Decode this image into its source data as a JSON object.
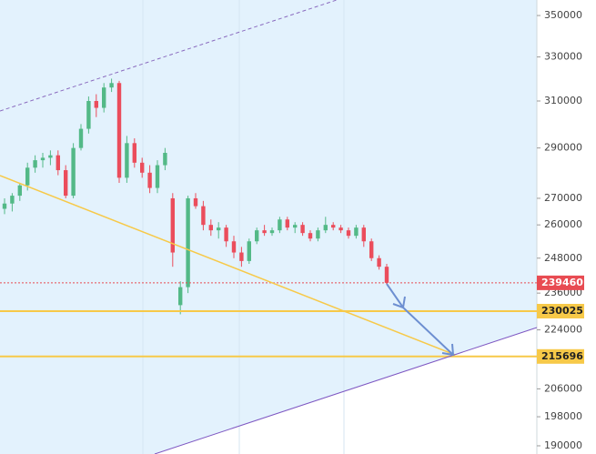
{
  "chart_data": {
    "type": "candlestick",
    "log_scale": true,
    "ylim": [
      187800,
      357800
    ],
    "yticks": [
      350000,
      330000,
      310000,
      290000,
      270000,
      260000,
      248000,
      236000,
      224000,
      206000,
      198000,
      190000
    ],
    "up_color": "#53b987",
    "down_color": "#eb4d5c",
    "candles": [
      [
        266000,
        270000,
        264000,
        268000
      ],
      [
        268000,
        272000,
        265000,
        271000
      ],
      [
        271000,
        276000,
        269000,
        275000
      ],
      [
        275000,
        284000,
        273000,
        282000
      ],
      [
        282000,
        287000,
        280000,
        285000
      ],
      [
        285000,
        288000,
        282000,
        286000
      ],
      [
        286000,
        289000,
        283000,
        287000
      ],
      [
        287000,
        289000,
        279000,
        281000
      ],
      [
        281000,
        283000,
        270000,
        271000
      ],
      [
        271000,
        292000,
        270000,
        290000
      ],
      [
        290000,
        300000,
        289000,
        298000
      ],
      [
        298000,
        312000,
        296000,
        310000
      ],
      [
        310000,
        313000,
        303000,
        307000
      ],
      [
        307000,
        318000,
        305000,
        316000
      ],
      [
        316000,
        320000,
        314000,
        318000
      ],
      [
        318000,
        319000,
        276000,
        278000
      ],
      [
        278000,
        295000,
        276000,
        292000
      ],
      [
        292000,
        294000,
        282000,
        284000
      ],
      [
        284000,
        286000,
        278000,
        280000
      ],
      [
        280000,
        283000,
        272000,
        274000
      ],
      [
        274000,
        285000,
        272000,
        283000
      ],
      [
        283000,
        290000,
        281000,
        288000
      ],
      [
        270000,
        272000,
        245000,
        250000
      ],
      [
        232000,
        240000,
        229000,
        238000
      ],
      [
        238000,
        271000,
        236000,
        270000
      ],
      [
        270000,
        272000,
        266000,
        267000
      ],
      [
        267000,
        269000,
        258000,
        260000
      ],
      [
        260000,
        262000,
        256000,
        258000
      ],
      [
        258000,
        261000,
        255000,
        259000
      ],
      [
        259000,
        260000,
        252000,
        254000
      ],
      [
        254000,
        256000,
        248000,
        250000
      ],
      [
        250000,
        252000,
        245000,
        247000
      ],
      [
        247000,
        255000,
        246000,
        254000
      ],
      [
        254000,
        259000,
        253000,
        258000
      ],
      [
        258000,
        260000,
        256000,
        257000
      ],
      [
        257000,
        259000,
        256000,
        258000
      ],
      [
        258000,
        263000,
        257000,
        262000
      ],
      [
        262000,
        263000,
        258000,
        259000
      ],
      [
        259000,
        261000,
        257000,
        260000
      ],
      [
        260000,
        261000,
        256000,
        257000
      ],
      [
        257000,
        258000,
        254000,
        255000
      ],
      [
        255000,
        259000,
        254000,
        258000
      ],
      [
        258000,
        263000,
        257000,
        260000
      ],
      [
        260000,
        261000,
        258000,
        259000
      ],
      [
        259000,
        260000,
        257000,
        258000
      ],
      [
        258000,
        259000,
        255000,
        256000
      ],
      [
        256000,
        260000,
        255000,
        259000
      ],
      [
        259000,
        260000,
        252000,
        254000
      ],
      [
        254000,
        255000,
        247000,
        248000
      ],
      [
        248000,
        249000,
        244000,
        245000
      ],
      [
        245000,
        246000,
        239000,
        239460
      ]
    ],
    "price_markers": [
      {
        "value": 239460,
        "color": "#e84b52",
        "line": "dotted"
      },
      {
        "value": 230025,
        "color": "#f7c948",
        "line": "solid"
      },
      {
        "value": 215696,
        "color": "#f7c948",
        "line": "solid"
      }
    ]
  }
}
